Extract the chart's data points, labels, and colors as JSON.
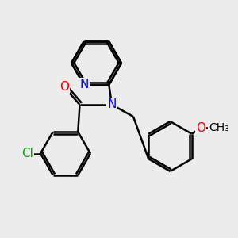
{
  "bg_color": "#ececec",
  "bond_color": "#000000",
  "bond_width": 1.8,
  "atom_colors": {
    "N": "#0000ee",
    "O": "#ee0000",
    "Cl": "#00aa00",
    "C": "#000000"
  },
  "font_size": 11,
  "fig_size": [
    3.0,
    3.0
  ],
  "dpi": 100
}
